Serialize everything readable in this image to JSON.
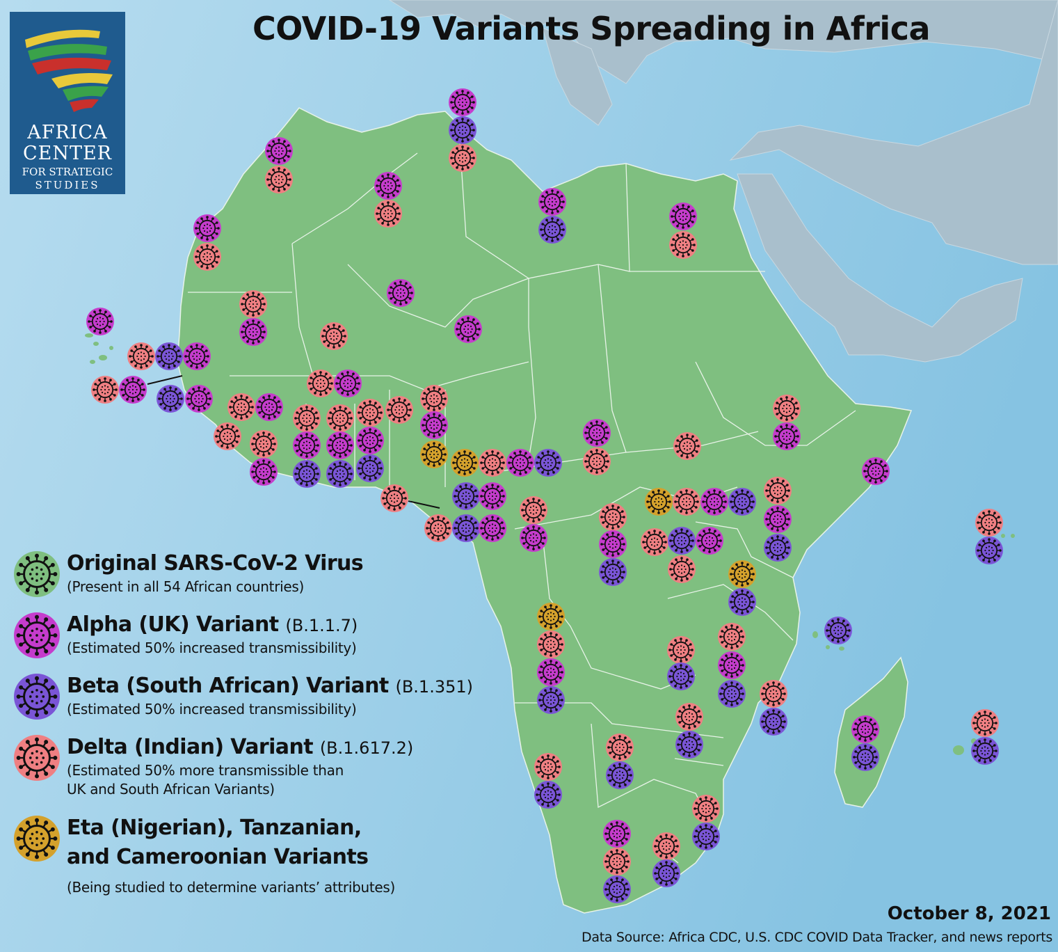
{
  "title": "COVID-19 Variants Spreading in Africa",
  "logo": {
    "line1": "AFRICA",
    "line2": "CENTER",
    "line3": "FOR STRATEGIC",
    "line4": "STUDIES"
  },
  "colors": {
    "ocean": "#9ccde6",
    "land": "#7fbf80",
    "other_land": "#a9bfcc",
    "border": "#e6f2e6",
    "original": "#7fbf80",
    "alpha": "#c53ccc",
    "beta": "#7a55d6",
    "delta": "#ef7f82",
    "eta": "#d4a12c",
    "logo_bg": "#1f5b8e"
  },
  "legend": [
    {
      "key": "original",
      "name": "Original SARS-CoV-2 Virus",
      "code": "",
      "desc": [
        "(Present in all 54 African countries)"
      ]
    },
    {
      "key": "alpha",
      "name": "Alpha (UK) Variant",
      "code": "(B.1.1.7)",
      "desc": [
        "(Estimated 50% increased transmissibility)"
      ]
    },
    {
      "key": "beta",
      "name": "Beta (South African) Variant",
      "code": "(B.1.351)",
      "desc": [
        "(Estimated 50% increased transmissibility)"
      ]
    },
    {
      "key": "delta",
      "name": "Delta (Indian) Variant",
      "code": "(B.1.617.2)",
      "desc": [
        "(Estimated 50% more transmissible than",
        "UK and South African Variants)"
      ]
    },
    {
      "key": "eta",
      "name": [
        "Eta (Nigerian), Tanzanian,",
        "and Cameroonian Variants"
      ],
      "code": "",
      "desc": [
        "(Being studied to determine variants’ attributes)"
      ]
    }
  ],
  "date": "October 8, 2021",
  "source": "Data Source: Africa CDC, U.S. CDC COVID Data Tracker, and news reports"
}
